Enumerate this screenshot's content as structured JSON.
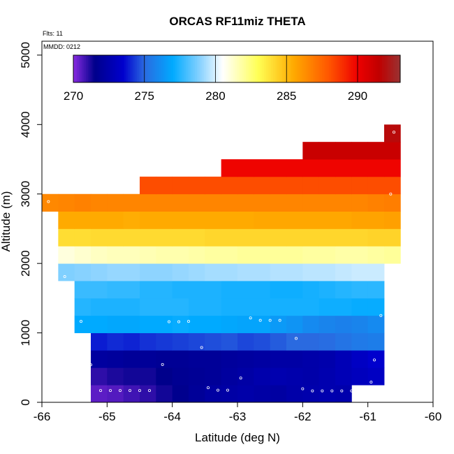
{
  "chart_data": {
    "type": "heatmap",
    "title": "ORCAS RF11miz THETA",
    "annotations": {
      "flights": "Flts: 11",
      "date": "MMDD: 0212"
    },
    "xlabel": "Latitude (deg N)",
    "ylabel": "Altitude (m)",
    "xlim": [
      -66,
      -60
    ],
    "ylim": [
      0,
      5200
    ],
    "x_ticks": [
      -66,
      -65,
      -64,
      -63,
      -62,
      -61,
      -60
    ],
    "x_tick_labels": [
      "-66",
      "-65",
      "-64",
      "-63",
      "-62",
      "-61",
      "-60"
    ],
    "y_ticks": [
      0,
      1000,
      2000,
      3000,
      4000,
      5000
    ],
    "y_tick_labels": [
      "0",
      "1000",
      "2000",
      "3000",
      "4000",
      "5000"
    ],
    "bin_height_m": 250,
    "colorbar": {
      "min": 270,
      "max": 293,
      "ticks": [
        270,
        275,
        280,
        285,
        290
      ],
      "tick_labels": [
        "270",
        "275",
        "280",
        "285",
        "290"
      ],
      "stops": [
        {
          "v": 270.0,
          "c": "#8a2be2"
        },
        {
          "v": 271.5,
          "c": "#00008b"
        },
        {
          "v": 273.5,
          "c": "#0000cd"
        },
        {
          "v": 275.0,
          "c": "#2a6ae0"
        },
        {
          "v": 277.0,
          "c": "#00aaff"
        },
        {
          "v": 279.0,
          "c": "#8ed4ff"
        },
        {
          "v": 280.5,
          "c": "#ffffff"
        },
        {
          "v": 283.0,
          "c": "#ffff55"
        },
        {
          "v": 285.5,
          "c": "#ffaa00"
        },
        {
          "v": 288.0,
          "c": "#ff5500"
        },
        {
          "v": 290.0,
          "c": "#ee0000"
        },
        {
          "v": 291.5,
          "c": "#c00000"
        },
        {
          "v": 293.0,
          "c": "#993333"
        }
      ]
    },
    "rows": [
      {
        "alt": 0,
        "x0": -65.25,
        "x1": -61.25,
        "values": [
          270.5,
          270.6,
          270.8,
          271.0,
          271.3,
          271.6,
          271.9,
          272.2,
          272.3,
          272.4,
          272.3,
          272.2,
          272.4,
          272.5,
          272.6,
          272.5
        ]
      },
      {
        "alt": 250,
        "x0": -65.25,
        "x1": -60.75,
        "values": [
          271.0,
          271.2,
          271.3,
          271.3,
          271.5,
          271.7,
          271.8,
          271.9,
          272.1,
          272.3,
          272.5,
          272.6,
          272.5,
          272.4,
          272.6,
          272.8,
          273.0,
          273.2
        ]
      },
      {
        "alt": 500,
        "x0": -65.25,
        "x1": -60.75,
        "values": [
          272.1,
          272.0,
          271.9,
          271.9,
          271.8,
          271.8,
          271.9,
          271.9,
          272.0,
          272.1,
          272.2,
          272.3,
          272.3,
          272.4,
          272.5,
          272.8,
          273.2,
          273.5
        ]
      },
      {
        "alt": 750,
        "x0": -65.25,
        "x1": -60.75,
        "values": [
          273.9,
          274.1,
          274.0,
          274.2,
          274.3,
          274.4,
          274.5,
          274.6,
          274.7,
          274.5,
          274.6,
          274.8,
          275.0,
          275.0,
          275.1,
          275.3,
          275.5,
          275.6
        ]
      },
      {
        "alt": 1000,
        "x0": -65.5,
        "x1": -60.75,
        "values": [
          277.0,
          277.0,
          276.9,
          276.9,
          277.0,
          277.0,
          277.1,
          277.0,
          277.0,
          276.9,
          276.8,
          276.8,
          276.5,
          276.3,
          276.0,
          275.8,
          275.7,
          275.8,
          276.0
        ]
      },
      {
        "alt": 1250,
        "x0": -65.5,
        "x1": -60.75,
        "values": [
          277.5,
          277.4,
          277.4,
          277.4,
          277.5,
          277.5,
          277.5,
          277.4,
          277.4,
          277.3,
          277.3,
          277.3,
          277.3,
          277.3,
          277.3,
          277.2,
          277.2,
          277.1,
          277.1
        ]
      },
      {
        "alt": 1500,
        "x0": -65.5,
        "x1": -60.75,
        "values": [
          277.8,
          277.8,
          277.7,
          277.7,
          277.5,
          277.5,
          277.4,
          277.4,
          277.4,
          277.3,
          277.3,
          277.3,
          277.2,
          277.2,
          277.3,
          277.4,
          277.5,
          277.6,
          277.6
        ]
      },
      {
        "alt": 1750,
        "x0": -65.75,
        "x1": -60.75,
        "values": [
          278.8,
          278.9,
          279.0,
          279.1,
          279.1,
          279.0,
          279.0,
          279.1,
          279.2,
          279.3,
          279.3,
          279.4,
          279.4,
          279.5,
          279.5,
          279.6,
          279.6,
          279.7,
          279.8,
          279.8
        ]
      },
      {
        "alt": 2000,
        "x0": -65.75,
        "x1": -60.5,
        "values": [
          281.0,
          281.2,
          281.4,
          281.5,
          281.5,
          281.6,
          281.7,
          281.7,
          281.8,
          281.9,
          281.9,
          282.0,
          282.0,
          282.0,
          282.0,
          281.9,
          281.9,
          281.8,
          281.8,
          281.9,
          282.0
        ]
      },
      {
        "alt": 2250,
        "x0": -65.75,
        "x1": -60.5,
        "values": [
          284.0,
          284.0,
          284.1,
          284.1,
          284.1,
          284.1,
          284.1,
          284.1,
          284.1,
          284.2,
          284.2,
          284.2,
          284.2,
          284.2,
          284.2,
          284.2,
          284.2,
          284.2,
          284.2,
          284.3,
          284.3
        ]
      },
      {
        "alt": 2500,
        "x0": -65.75,
        "x1": -60.5,
        "values": [
          285.5,
          285.5,
          285.5,
          285.5,
          285.4,
          285.5,
          285.5,
          285.5,
          285.5,
          285.5,
          285.5,
          285.5,
          285.6,
          285.6,
          285.6,
          285.6,
          285.6,
          285.6,
          285.7,
          285.7,
          285.8
        ]
      },
      {
        "alt": 2750,
        "x0": -66.0,
        "x1": -60.5,
        "values": [
          286.5,
          286.6,
          286.7,
          286.6,
          286.6,
          286.6,
          286.6,
          286.6,
          286.6,
          286.6,
          286.6,
          286.6,
          286.6,
          286.6,
          286.6,
          286.6,
          286.6,
          286.6,
          286.6,
          286.6,
          286.7,
          286.8
        ]
      },
      {
        "alt": 3000,
        "x0": -64.5,
        "x1": -60.5,
        "values": [
          288.2,
          288.2,
          288.2,
          288.2,
          288.2,
          288.2,
          288.2,
          288.2,
          288.2,
          288.2,
          288.2,
          288.2,
          288.2,
          288.2,
          288.2,
          288.2
        ]
      },
      {
        "alt": 3250,
        "x0": -63.25,
        "x1": -60.5,
        "values": [
          289.9,
          289.9,
          289.9,
          289.9,
          289.9,
          289.9,
          289.9,
          289.9,
          289.9,
          289.9,
          289.9
        ]
      },
      {
        "alt": 3500,
        "x0": -62.0,
        "x1": -60.5,
        "values": [
          291.2,
          291.2,
          291.2,
          291.2,
          291.2,
          291.2
        ]
      },
      {
        "alt": 3750,
        "x0": -60.75,
        "x1": -60.5,
        "values": [
          291.8
        ]
      }
    ],
    "points": [
      [
        -65.1,
        170
      ],
      [
        -64.95,
        170
      ],
      [
        -64.8,
        170
      ],
      [
        -64.65,
        170
      ],
      [
        -64.5,
        170
      ],
      [
        -64.35,
        170
      ],
      [
        -63.45,
        210
      ],
      [
        -63.3,
        175
      ],
      [
        -63.15,
        175
      ],
      [
        -62.95,
        350
      ],
      [
        -62.0,
        195
      ],
      [
        -61.85,
        165
      ],
      [
        -61.7,
        165
      ],
      [
        -61.55,
        165
      ],
      [
        -61.4,
        165
      ],
      [
        -61.25,
        165
      ],
      [
        -61.1,
        165
      ],
      [
        -60.95,
        290
      ],
      [
        -65.25,
        540
      ],
      [
        -64.15,
        545
      ],
      [
        -60.9,
        610
      ],
      [
        -63.55,
        790
      ],
      [
        -62.1,
        920
      ],
      [
        -65.4,
        1165
      ],
      [
        -64.05,
        1160
      ],
      [
        -63.9,
        1160
      ],
      [
        -63.75,
        1165
      ],
      [
        -62.8,
        1215
      ],
      [
        -62.65,
        1180
      ],
      [
        -62.5,
        1180
      ],
      [
        -62.35,
        1180
      ],
      [
        -60.8,
        1250
      ],
      [
        -65.65,
        1810
      ],
      [
        -65.9,
        2890
      ],
      [
        -60.65,
        3000
      ],
      [
        -60.6,
        3890
      ]
    ]
  }
}
